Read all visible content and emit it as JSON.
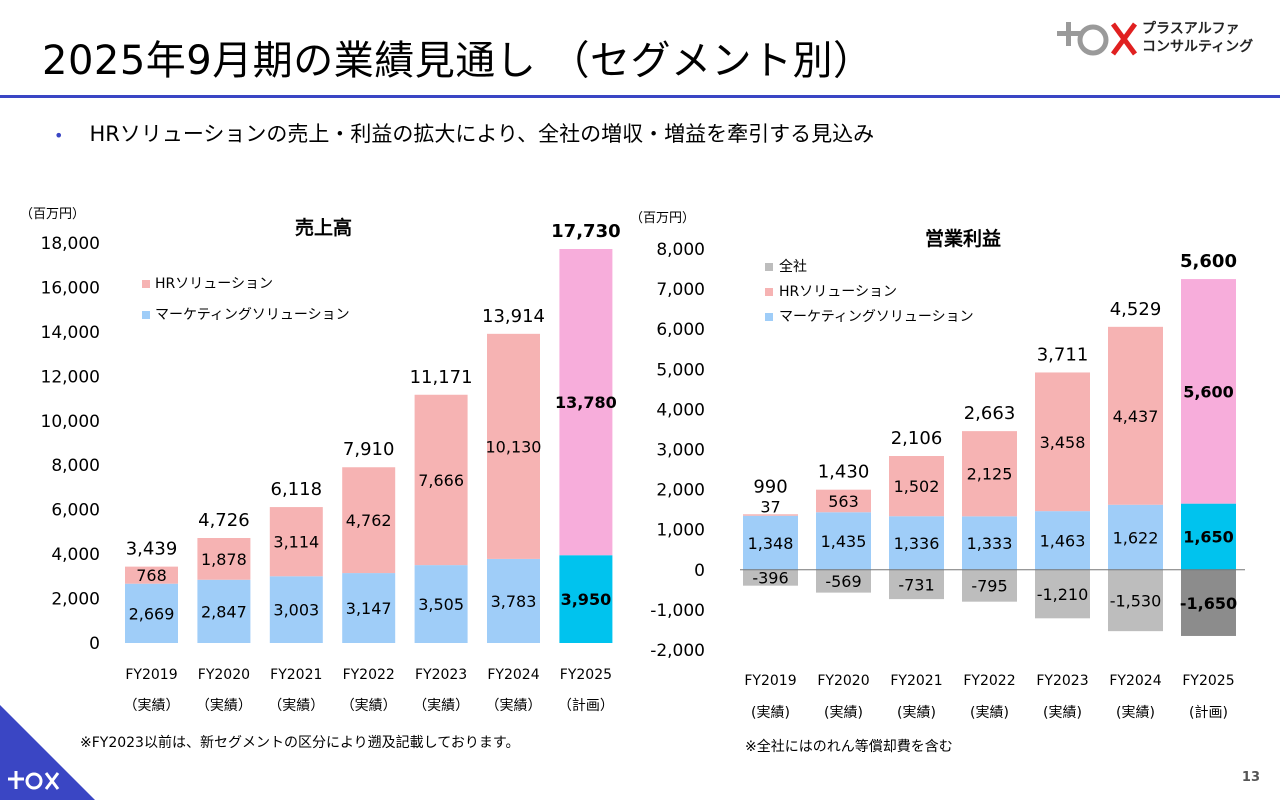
{
  "page": {
    "title": "2025年9月期の業績見通し （セグメント別）",
    "bullet": "HRソリューションの売上・利益の拡大により、全社の増収・増益を牽引する見込み",
    "logo_line1": "プラスアルファ",
    "logo_line2": "コンサルティング",
    "note_left": "※FY2023以前は、新セグメントの区分により遡及記載しております。",
    "note_right": "※全社にはのれん等償却費を含む",
    "page_number": "13",
    "accent_color": "#3a46c4"
  },
  "chart_data": [
    {
      "type": "bar",
      "title": "売上高",
      "unit_label": "（百万円）",
      "categories": [
        "FY2019",
        "FY2020",
        "FY2021",
        "FY2022",
        "FY2023",
        "FY2024",
        "FY2025"
      ],
      "category_sub": [
        "（実績）",
        "（実績）",
        "（実績）",
        "（実績）",
        "（実績）",
        "（実績）",
        "（計画）"
      ],
      "ylim": [
        0,
        18000
      ],
      "yticks": [
        "0",
        "2,000",
        "4,000",
        "6,000",
        "8,000",
        "10,000",
        "12,000",
        "14,000",
        "16,000",
        "18,000"
      ],
      "series": [
        {
          "name": "マーケティングソリューション",
          "values": [
            2669,
            2847,
            3003,
            3147,
            3505,
            3783,
            3950
          ],
          "labels": [
            "2,669",
            "2,847",
            "3,003",
            "3,147",
            "3,505",
            "3,783",
            "3,950"
          ],
          "color": "#9fcdf8",
          "highlight_color": "#00c3ee"
        },
        {
          "name": "HRソリューション",
          "values": [
            768,
            1878,
            3114,
            4762,
            7666,
            10130,
            13780
          ],
          "labels": [
            "768",
            "1,878",
            "3,114",
            "4,762",
            "7,666",
            "10,130",
            "13,780"
          ],
          "color": "#f6b3b3",
          "highlight_color": "#f7addb"
        }
      ],
      "totals": [
        "3,439",
        "4,726",
        "6,118",
        "7,910",
        "11,171",
        "13,914",
        "17,730"
      ],
      "legend_position": "top-left"
    },
    {
      "type": "bar",
      "title": "営業利益",
      "unit_label": "（百万円）",
      "categories": [
        "FY2019",
        "FY2020",
        "FY2021",
        "FY2022",
        "FY2023",
        "FY2024",
        "FY2025"
      ],
      "category_sub": [
        "(実績)",
        "(実績)",
        "(実績)",
        "(実績)",
        "(実績)",
        "(実績)",
        "(計画)"
      ],
      "ylim": [
        -2000,
        8000
      ],
      "yticks": [
        "-2,000",
        "-1,000",
        "0",
        "1,000",
        "2,000",
        "3,000",
        "4,000",
        "5,000",
        "6,000",
        "7,000",
        "8,000"
      ],
      "series": [
        {
          "name": "全社",
          "values": [
            -396,
            -569,
            -731,
            -795,
            -1210,
            -1530,
            -1650
          ],
          "labels": [
            "-396",
            "-569",
            "-731",
            "-795",
            "-1,210",
            "-1,530",
            "-1,650"
          ],
          "color": "#bdbdbd",
          "highlight_color": "#8c8c8c"
        },
        {
          "name": "HRソリューション",
          "values": [
            37,
            563,
            1502,
            2125,
            3458,
            4437,
            5600
          ],
          "labels": [
            "37",
            "563",
            "1,502",
            "2,125",
            "3,458",
            "4,437",
            "5,600"
          ],
          "color": "#f6b3b3",
          "highlight_color": "#f7addb"
        },
        {
          "name": "マーケティングソリューション",
          "values": [
            1348,
            1435,
            1336,
            1333,
            1463,
            1622,
            1650
          ],
          "labels": [
            "1,348",
            "1,435",
            "1,336",
            "1,333",
            "1,463",
            "1,622",
            "1,650"
          ],
          "color": "#9fcdf8",
          "highlight_color": "#00c3ee"
        }
      ],
      "totals": [
        "990",
        "1,430",
        "2,106",
        "2,663",
        "3,711",
        "4,529",
        "5,600"
      ],
      "legend_position": "top-left"
    }
  ]
}
